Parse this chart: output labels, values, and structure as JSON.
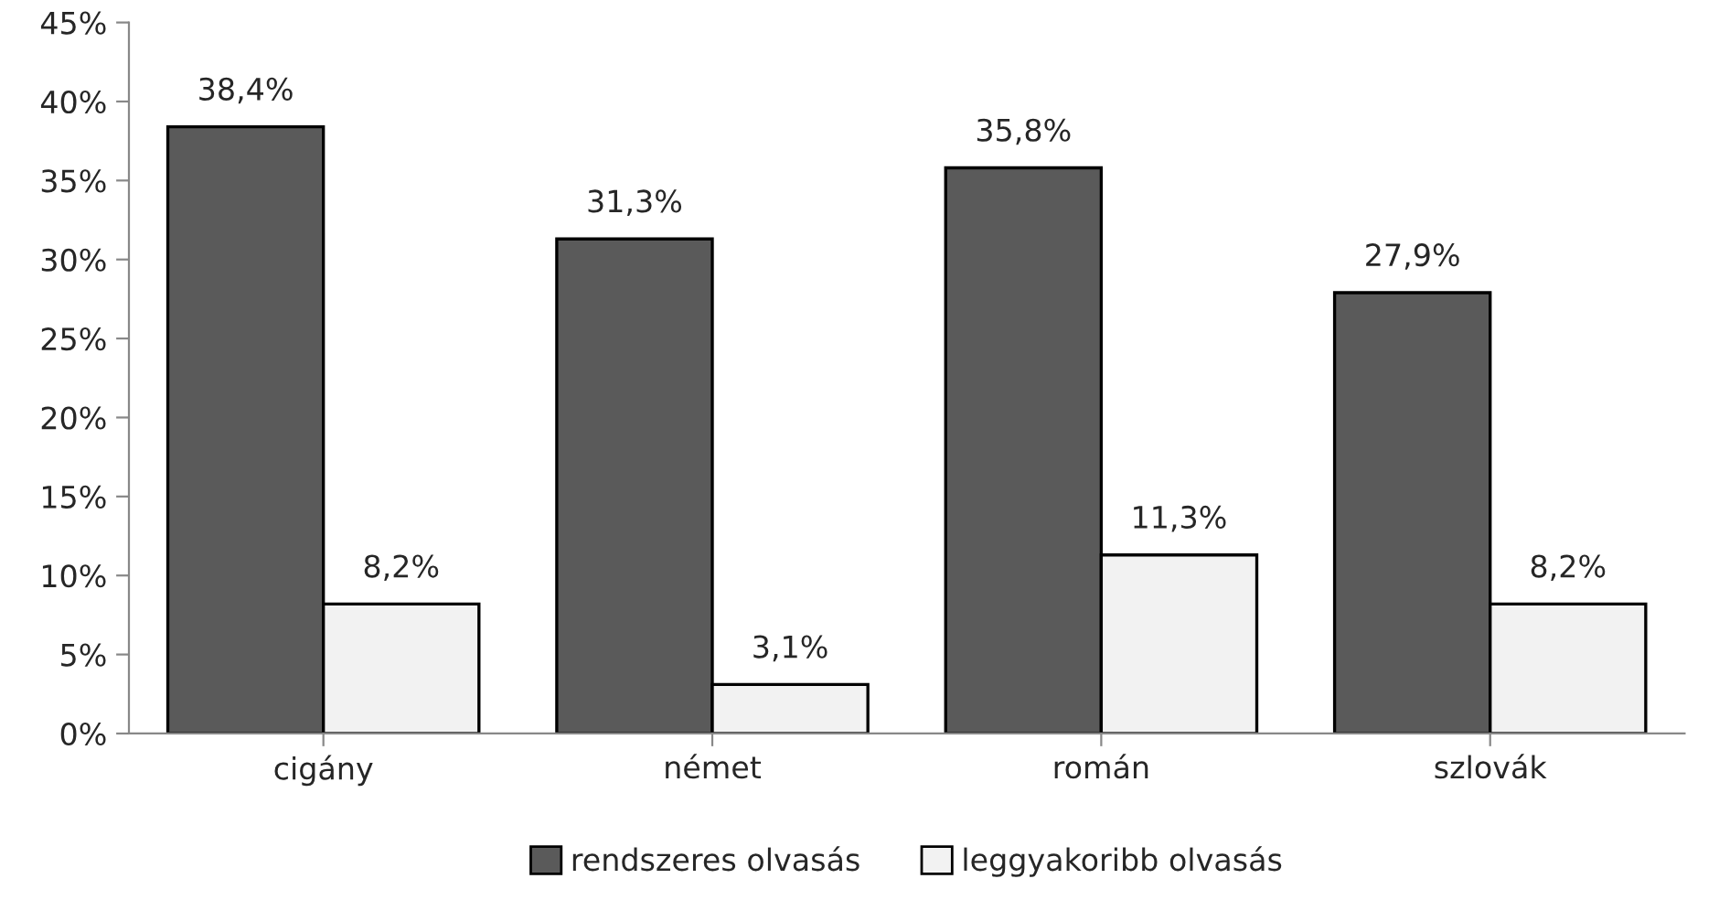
{
  "chart_data": {
    "type": "bar",
    "categories": [
      "cigány",
      "német",
      "román",
      "szlovák"
    ],
    "series": [
      {
        "name": "rendszeres olvasás",
        "color": "#5a5a5a",
        "values": [
          38.4,
          31.3,
          35.8,
          27.9
        ],
        "value_labels": [
          "38,4%",
          "31,3%",
          "35,8%",
          "27,9%"
        ]
      },
      {
        "name": "leggyakoribb olvasás",
        "color": "#f2f2f2",
        "values": [
          8.2,
          3.1,
          11.3,
          8.2
        ],
        "value_labels": [
          "8,2%",
          "3,1%",
          "11,3%",
          "8,2%"
        ]
      }
    ],
    "ylim": [
      0,
      45
    ],
    "yticks": [
      {
        "value": 0,
        "label": "0%"
      },
      {
        "value": 5,
        "label": "5%"
      },
      {
        "value": 10,
        "label": "10%"
      },
      {
        "value": 15,
        "label": "15%"
      },
      {
        "value": 20,
        "label": "20%"
      },
      {
        "value": 25,
        "label": "25%"
      },
      {
        "value": 30,
        "label": "30%"
      },
      {
        "value": 35,
        "label": "35%"
      },
      {
        "value": 40,
        "label": "40%"
      },
      {
        "value": 45,
        "label": "45%"
      }
    ],
    "grid": false,
    "legend": "bottom"
  }
}
